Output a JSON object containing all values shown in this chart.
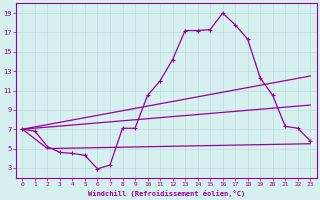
{
  "xlabel": "Windchill (Refroidissement éolien,°C)",
  "bg_color": "#d6f0f0",
  "line_color": "#990099",
  "grid_color": "#bbdddd",
  "xlim": [
    -0.5,
    23.5
  ],
  "ylim": [
    2,
    20
  ],
  "xticks": [
    0,
    1,
    2,
    3,
    4,
    5,
    6,
    7,
    8,
    9,
    10,
    11,
    12,
    13,
    14,
    15,
    16,
    17,
    18,
    19,
    20,
    21,
    22,
    23
  ],
  "yticks": [
    3,
    5,
    7,
    9,
    11,
    13,
    15,
    17,
    19
  ],
  "line1_x": [
    0,
    1,
    2,
    3,
    4,
    5,
    6,
    7,
    8,
    9,
    10,
    11,
    12,
    13,
    14,
    15,
    16,
    17,
    18,
    19,
    20,
    21,
    22,
    23
  ],
  "line1_y": [
    7.0,
    6.8,
    5.2,
    4.6,
    4.5,
    4.3,
    2.9,
    3.3,
    7.1,
    7.1,
    10.5,
    12.0,
    14.2,
    17.2,
    17.2,
    17.3,
    19.0,
    17.8,
    16.3,
    12.3,
    10.5,
    7.3,
    7.1,
    5.8
  ],
  "line2_x": [
    0,
    23
  ],
  "line2_y": [
    7.0,
    12.5
  ],
  "line3_x": [
    0,
    2,
    23
  ],
  "line3_y": [
    7.0,
    5.0,
    5.5
  ],
  "line4_x": [
    0,
    23
  ],
  "line4_y": [
    7.0,
    9.5
  ]
}
